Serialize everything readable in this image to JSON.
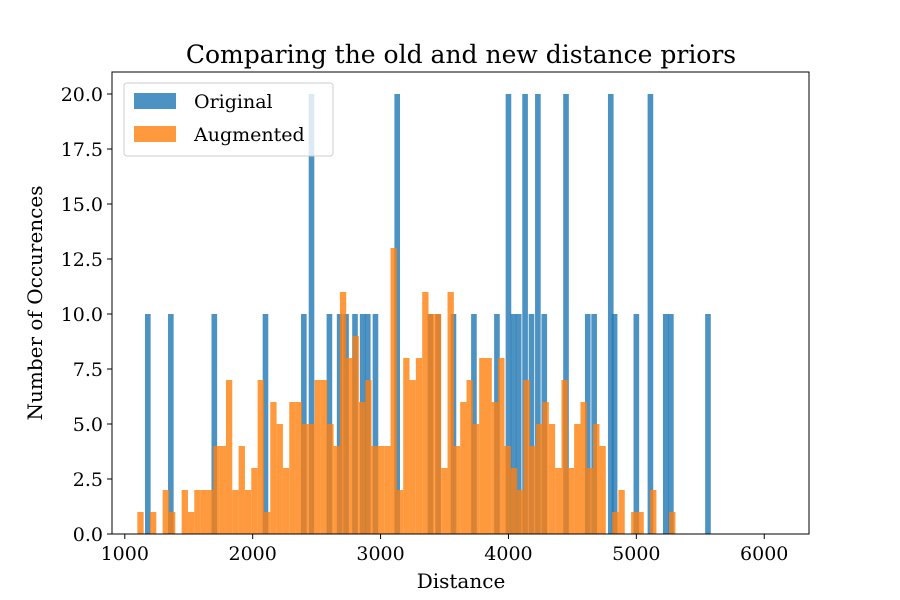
{
  "chart_data": {
    "type": "bar",
    "title": "Comparing the old and new distance priors",
    "xlabel": "Distance",
    "ylabel": "Number of Occurences",
    "xlim": [
      900,
      6350
    ],
    "ylim": [
      0,
      21
    ],
    "xticks": [
      "1000",
      "2000",
      "3000",
      "4000",
      "5000",
      "6000"
    ],
    "yticks": [
      "0.0",
      "2.5",
      "5.0",
      "7.5",
      "10.0",
      "12.5",
      "15.0",
      "17.5",
      "20.0"
    ],
    "legend_position": "upper-left",
    "grid": false,
    "series": [
      {
        "name": "Original",
        "color": "#1f77b4",
        "opacity": 0.8,
        "bin_width": 44,
        "bins": [
          {
            "x": 1180,
            "y": 10
          },
          {
            "x": 1360,
            "y": 10
          },
          {
            "x": 1700,
            "y": 10
          },
          {
            "x": 2100,
            "y": 10
          },
          {
            "x": 2400,
            "y": 10
          },
          {
            "x": 2460,
            "y": 20
          },
          {
            "x": 2600,
            "y": 10
          },
          {
            "x": 2680,
            "y": 10
          },
          {
            "x": 2730,
            "y": 10
          },
          {
            "x": 2800,
            "y": 10
          },
          {
            "x": 2860,
            "y": 10
          },
          {
            "x": 2900,
            "y": 10
          },
          {
            "x": 2960,
            "y": 10
          },
          {
            "x": 3130,
            "y": 20
          },
          {
            "x": 3390,
            "y": 10
          },
          {
            "x": 3450,
            "y": 10
          },
          {
            "x": 3570,
            "y": 10
          },
          {
            "x": 3730,
            "y": 10
          },
          {
            "x": 3910,
            "y": 10
          },
          {
            "x": 4000,
            "y": 20
          },
          {
            "x": 4040,
            "y": 10
          },
          {
            "x": 4080,
            "y": 10
          },
          {
            "x": 4130,
            "y": 20
          },
          {
            "x": 4180,
            "y": 10
          },
          {
            "x": 4230,
            "y": 20
          },
          {
            "x": 4280,
            "y": 10
          },
          {
            "x": 4450,
            "y": 20
          },
          {
            "x": 4620,
            "y": 10
          },
          {
            "x": 4670,
            "y": 10
          },
          {
            "x": 4800,
            "y": 20
          },
          {
            "x": 4830,
            "y": 10
          },
          {
            "x": 5000,
            "y": 10
          },
          {
            "x": 5110,
            "y": 20
          },
          {
            "x": 5230,
            "y": 10
          },
          {
            "x": 5270,
            "y": 10
          },
          {
            "x": 5560,
            "y": 10
          }
        ]
      },
      {
        "name": "Augmented",
        "color": "#ff7f0e",
        "opacity": 0.8,
        "bin_width": 49.5,
        "start": 1098,
        "values": [
          1,
          0,
          1,
          0,
          2,
          1,
          0,
          2,
          1,
          2,
          2,
          2,
          4,
          4,
          7,
          2,
          4,
          2,
          3,
          7,
          1,
          6,
          5,
          3,
          6,
          6,
          5,
          5,
          7,
          7,
          5,
          4,
          11,
          8,
          9,
          6,
          7,
          4,
          4,
          4,
          13,
          2,
          8,
          7,
          8,
          11,
          10,
          10,
          3,
          11,
          4,
          6,
          7,
          5,
          8,
          8,
          6,
          8,
          4,
          3,
          2,
          7,
          4,
          5,
          6,
          5,
          3,
          7,
          3,
          5,
          6,
          3,
          5,
          4,
          0,
          1,
          2,
          0,
          1,
          1,
          0,
          2,
          0,
          0,
          1,
          0
        ]
      }
    ]
  }
}
